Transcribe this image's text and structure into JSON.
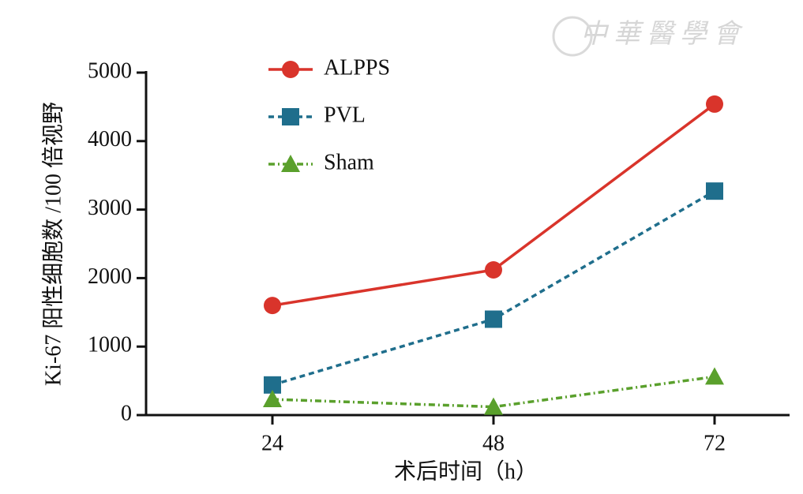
{
  "chart_data": {
    "type": "line",
    "watermark": "中華醫學會",
    "y_label": "Ki-67 阳性细胞数 /100 倍视野",
    "x_label": "术后时间（h）",
    "categories": [
      "24",
      "48",
      "72"
    ],
    "series": [
      {
        "name": "ALPPS",
        "color": "#d9342b",
        "marker": "circle",
        "dash": "solid",
        "values": [
          1600,
          2120,
          4540
        ]
      },
      {
        "name": "PVL",
        "color": "#1f6e8c",
        "marker": "square",
        "dash": "dashed",
        "values": [
          440,
          1400,
          3270
        ]
      },
      {
        "name": "Sham",
        "color": "#5aa02c",
        "marker": "triangle",
        "dash": "dashdot",
        "values": [
          230,
          120,
          560
        ]
      }
    ],
    "ylim": [
      0,
      5000
    ],
    "yticks": [
      0,
      1000,
      2000,
      3000,
      4000,
      5000
    ],
    "grid": false,
    "legend_position": "upper left"
  }
}
